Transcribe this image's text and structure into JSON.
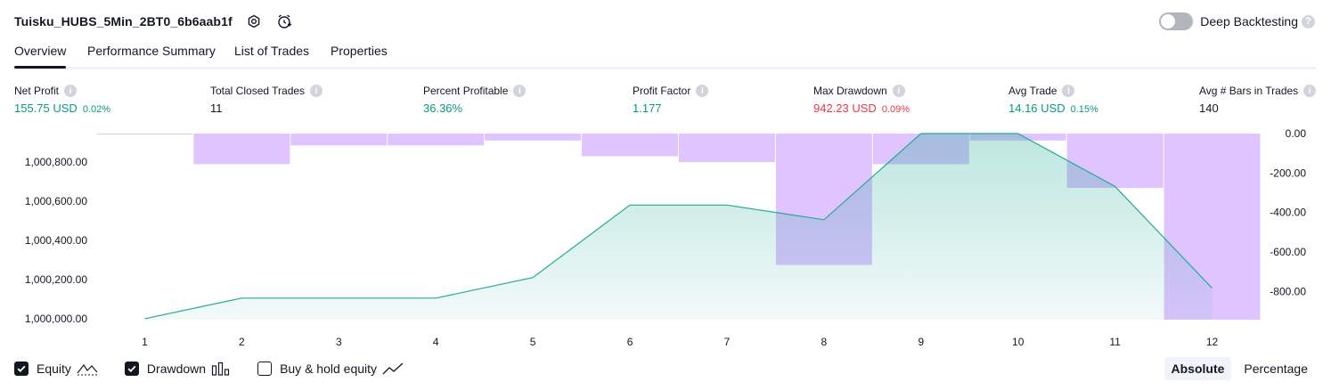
{
  "header": {
    "title": "Tuisku_HUBS_5Min_2BT0_6b6aab1f",
    "settings_icon": "gear-icon",
    "alert_icon": "add-alert-icon"
  },
  "deep_backtesting": {
    "label": "Deep Backtesting",
    "enabled": false,
    "help": "?"
  },
  "tabs": [
    {
      "label": "Overview",
      "active": true
    },
    {
      "label": "Performance Summary",
      "active": false
    },
    {
      "label": "List of Trades",
      "active": false
    },
    {
      "label": "Properties",
      "active": false
    }
  ],
  "metrics": [
    {
      "label": "Net Profit",
      "value": "155.75 USD",
      "pct": "0.02%",
      "color": "#089981"
    },
    {
      "label": "Total Closed Trades",
      "value": "11",
      "pct": "",
      "color": "#131722"
    },
    {
      "label": "Percent Profitable",
      "value": "36.36%",
      "pct": "",
      "color": "#089981"
    },
    {
      "label": "Profit Factor",
      "value": "1.177",
      "pct": "",
      "color": "#089981"
    },
    {
      "label": "Max Drawdown",
      "value": "942.23 USD",
      "pct": "0.09%",
      "color": "#f23645"
    },
    {
      "label": "Avg Trade",
      "value": "14.16 USD",
      "pct": "0.15%",
      "color": "#089981"
    },
    {
      "label": "Avg # Bars in Trades",
      "value": "140",
      "pct": "",
      "color": "#131722"
    }
  ],
  "chart_data": {
    "type": "area",
    "x": [
      1,
      2,
      3,
      4,
      5,
      6,
      7,
      8,
      9,
      10,
      11,
      12
    ],
    "x_tick_labels": [
      "1",
      "2",
      "3",
      "4",
      "5",
      "6",
      "7",
      "8",
      "9",
      "10",
      "11",
      "12"
    ],
    "series": [
      {
        "kind": "area",
        "axis": "left",
        "values": [
          1000000,
          1000105,
          1000105,
          1000105,
          1000210,
          1000580,
          1000580,
          1000505,
          1000945,
          1000945,
          1000675,
          1000155.75
        ],
        "color": "#22ab94"
      },
      {
        "kind": "bar",
        "axis": "right",
        "values": [
          -5,
          -155,
          -60,
          -60,
          -35,
          -115,
          -145,
          -665,
          -155,
          -35,
          -275,
          -942.23
        ],
        "color": "#c99cff"
      }
    ],
    "left_axis": {
      "ylim": [
        999995,
        1000945
      ],
      "ticks": [
        1000000,
        1000200,
        1000400,
        1000600,
        1000800
      ],
      "tick_labels": [
        "1,000,000.00",
        "1,000,200.00",
        "1,000,400.00",
        "1,000,600.00",
        "1,000,800.00"
      ]
    },
    "right_axis": {
      "ylim": [
        -942.23,
        0
      ],
      "ticks": [
        0,
        -200,
        -400,
        -600,
        -800
      ],
      "tick_labels": [
        "0.00",
        "-200.00",
        "-400.00",
        "-600.00",
        "-800.00"
      ]
    },
    "grid": false
  },
  "legend": [
    {
      "label": "Equity",
      "checked": true,
      "icon": "equity-line-icon"
    },
    {
      "label": "Drawdown",
      "checked": true,
      "icon": "drawdown-bars-icon"
    },
    {
      "label": "Buy & hold equity",
      "checked": false,
      "icon": "buy-hold-line-icon"
    }
  ],
  "modes": [
    {
      "label": "Absolute",
      "active": true
    },
    {
      "label": "Percentage",
      "active": false
    }
  ]
}
